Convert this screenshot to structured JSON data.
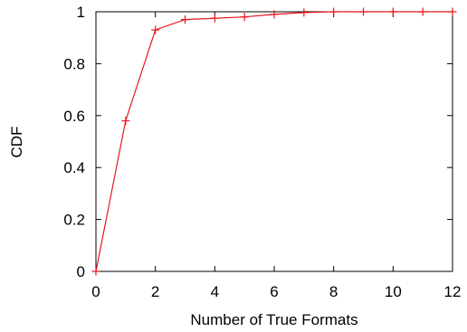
{
  "chart_data": {
    "type": "line",
    "title": "",
    "xlabel": "Number of True Formats",
    "ylabel": "CDF",
    "xlim": [
      0,
      12
    ],
    "ylim": [
      0,
      1
    ],
    "x_ticks": [
      0,
      2,
      4,
      6,
      8,
      10,
      12
    ],
    "y_ticks": [
      0,
      0.2,
      0.4,
      0.6,
      0.8,
      1
    ],
    "x_tick_labels": [
      "0",
      "2",
      "4",
      "6",
      "8",
      "10",
      "12"
    ],
    "y_tick_labels": [
      "0",
      "0.2",
      "0.4",
      "0.6",
      "0.8",
      "1"
    ],
    "grid": false,
    "series": [
      {
        "color": "#e8161d",
        "marker": "plus",
        "x": [
          0,
          1,
          2,
          3,
          4,
          5,
          6,
          7,
          8,
          9,
          10,
          11,
          12
        ],
        "y": [
          0.0,
          0.58,
          0.93,
          0.97,
          0.975,
          0.98,
          0.99,
          0.997,
          1.0,
          1.0,
          1.0,
          1.0,
          1.0
        ]
      }
    ]
  }
}
